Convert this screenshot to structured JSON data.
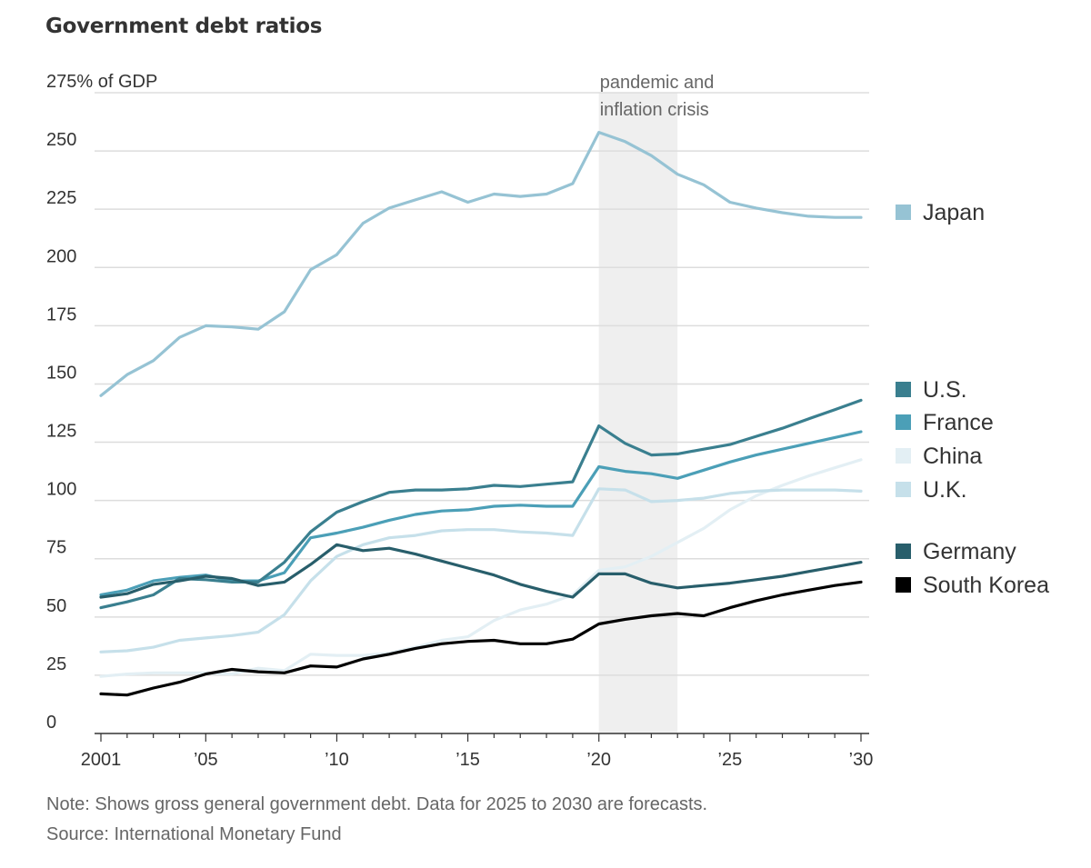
{
  "chart_data": {
    "type": "line",
    "title": "Government debt ratios",
    "ylabel": "275% of GDP",
    "ylim": [
      0,
      275
    ],
    "yticks": [
      0,
      25,
      50,
      75,
      100,
      125,
      150,
      175,
      200,
      225,
      250
    ],
    "xlim": [
      2001,
      2030
    ],
    "xticks": [
      {
        "value": 2001,
        "label": "2001"
      },
      {
        "value": 2005,
        "label": "’05"
      },
      {
        "value": 2010,
        "label": "’10"
      },
      {
        "value": 2015,
        "label": "’15"
      },
      {
        "value": 2020,
        "label": "’20"
      },
      {
        "value": 2025,
        "label": "’25"
      },
      {
        "value": 2030,
        "label": "’30"
      }
    ],
    "annotation": {
      "lines": [
        "pandemic and",
        "inflation crisis"
      ],
      "x_start": 2020,
      "x_end": 2023
    },
    "series": [
      {
        "name": "Japan",
        "color": "#96c3d4",
        "x": [
          2001,
          2002,
          2003,
          2004,
          2005,
          2006,
          2007,
          2008,
          2009,
          2010,
          2011,
          2012,
          2013,
          2014,
          2015,
          2016,
          2017,
          2018,
          2019,
          2020,
          2021,
          2022,
          2023,
          2024,
          2025,
          2026,
          2027,
          2028,
          2029,
          2030
        ],
        "y": [
          145,
          154,
          160,
          170,
          175,
          174.5,
          173.5,
          181,
          199,
          205.5,
          219,
          225.5,
          229,
          232.5,
          228,
          231.5,
          230.5,
          231.5,
          236,
          258,
          254,
          248,
          240,
          235.5,
          228,
          225.5,
          223.5,
          222,
          221.5,
          221.5
        ]
      },
      {
        "name": "China",
        "color": "#e3eff4",
        "x": [
          2001,
          2002,
          2003,
          2004,
          2005,
          2006,
          2007,
          2008,
          2009,
          2010,
          2011,
          2012,
          2013,
          2014,
          2015,
          2016,
          2017,
          2018,
          2019,
          2020,
          2021,
          2022,
          2023,
          2024,
          2025,
          2026,
          2027,
          2028,
          2029,
          2030
        ],
        "y": [
          24.5,
          25.5,
          26,
          26,
          26,
          25.5,
          28,
          27,
          34,
          33.5,
          33.5,
          34.5,
          37,
          40,
          41.5,
          48.5,
          53,
          55.5,
          59.5,
          70,
          71.5,
          76,
          82,
          88,
          96,
          102,
          106.5,
          110.5,
          114,
          117.5
        ]
      },
      {
        "name": "U.K.",
        "color": "#c6e0ea",
        "x": [
          2001,
          2002,
          2003,
          2004,
          2005,
          2006,
          2007,
          2008,
          2009,
          2010,
          2011,
          2012,
          2013,
          2014,
          2015,
          2016,
          2017,
          2018,
          2019,
          2020,
          2021,
          2022,
          2023,
          2024,
          2025,
          2026,
          2027,
          2028,
          2029,
          2030
        ],
        "y": [
          35,
          35.5,
          37,
          40,
          41,
          42,
          43.5,
          51,
          65.5,
          76,
          81,
          84,
          85,
          87,
          87.5,
          87.5,
          86.5,
          86,
          85,
          105,
          104.5,
          99.5,
          100,
          101,
          103,
          104,
          104.5,
          104.5,
          104.5,
          104
        ]
      },
      {
        "name": "France",
        "color": "#4b9fb7",
        "x": [
          2001,
          2002,
          2003,
          2004,
          2005,
          2006,
          2007,
          2008,
          2009,
          2010,
          2011,
          2012,
          2013,
          2014,
          2015,
          2016,
          2017,
          2018,
          2019,
          2020,
          2021,
          2022,
          2023,
          2024,
          2025,
          2026,
          2027,
          2028,
          2029,
          2030
        ],
        "y": [
          59.5,
          61.5,
          65.5,
          67,
          68,
          65.5,
          65.5,
          69,
          84,
          86,
          88.5,
          91.5,
          94,
          95.5,
          96,
          97.5,
          98,
          97.5,
          97.5,
          114.5,
          112.5,
          111.5,
          109.5,
          113,
          116.5,
          119.5,
          122,
          124.5,
          127,
          129.5
        ]
      },
      {
        "name": "U.S.",
        "color": "#3a7f8f",
        "x": [
          2001,
          2002,
          2003,
          2004,
          2005,
          2006,
          2007,
          2008,
          2009,
          2010,
          2011,
          2012,
          2013,
          2014,
          2015,
          2016,
          2017,
          2018,
          2019,
          2020,
          2021,
          2022,
          2023,
          2024,
          2025,
          2026,
          2027,
          2028,
          2029,
          2030
        ],
        "y": [
          54,
          56.5,
          59.5,
          66.5,
          66,
          65,
          65,
          73.5,
          86.5,
          95,
          99.5,
          103.5,
          104.5,
          104.5,
          105,
          106.5,
          106,
          107,
          108,
          132,
          124.5,
          119.5,
          120,
          122,
          124,
          127.5,
          131,
          135,
          139,
          143
        ]
      },
      {
        "name": "Germany",
        "color": "#285e6b",
        "x": [
          2001,
          2002,
          2003,
          2004,
          2005,
          2006,
          2007,
          2008,
          2009,
          2010,
          2011,
          2012,
          2013,
          2014,
          2015,
          2016,
          2017,
          2018,
          2019,
          2020,
          2021,
          2022,
          2023,
          2024,
          2025,
          2026,
          2027,
          2028,
          2029,
          2030
        ],
        "y": [
          58.5,
          60,
          64,
          65.5,
          67.5,
          66.5,
          63.5,
          65,
          72.5,
          81,
          78.5,
          79.5,
          77,
          74,
          71,
          68,
          64,
          61,
          58.5,
          68.5,
          68.5,
          64.5,
          62.5,
          63.5,
          64.5,
          66,
          67.5,
          69.5,
          71.5,
          73.5
        ]
      },
      {
        "name": "South Korea",
        "color": "#000000",
        "x": [
          2001,
          2002,
          2003,
          2004,
          2005,
          2006,
          2007,
          2008,
          2009,
          2010,
          2011,
          2012,
          2013,
          2014,
          2015,
          2016,
          2017,
          2018,
          2019,
          2020,
          2021,
          2022,
          2023,
          2024,
          2025,
          2026,
          2027,
          2028,
          2029,
          2030
        ],
        "y": [
          17,
          16.5,
          19.5,
          22,
          25.5,
          27.5,
          26.5,
          26,
          29,
          28.5,
          32,
          34,
          36.5,
          38.5,
          39.5,
          40,
          38.5,
          38.5,
          40.5,
          47,
          49,
          50.5,
          51.5,
          50.5,
          54,
          57,
          59.5,
          61.5,
          63.5,
          65
        ]
      }
    ],
    "legend": [
      {
        "name": "Japan",
        "color": "#96c3d4"
      },
      {
        "name": "U.S.",
        "color": "#3a7f8f"
      },
      {
        "name": "France",
        "color": "#4b9fb7"
      },
      {
        "name": "China",
        "color": "#e3eff4"
      },
      {
        "name": "U.K.",
        "color": "#c6e0ea"
      },
      {
        "name": "Germany",
        "color": "#285e6b"
      },
      {
        "name": "South Korea",
        "color": "#000000"
      }
    ]
  },
  "footer": {
    "note": "Note: Shows gross general government debt. Data for 2025 to 2030 are forecasts.",
    "source": "Source: International Monetary Fund"
  }
}
